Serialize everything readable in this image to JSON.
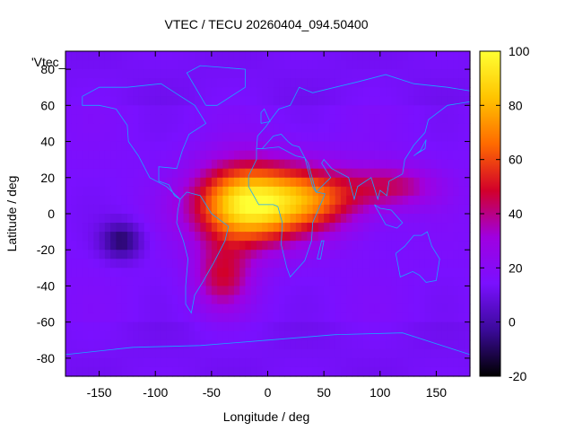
{
  "chart_data": {
    "type": "heatmap",
    "title": "VTEC / TECU 20260404_094.50400",
    "xlabel": "Longitude / deg",
    "ylabel": "Latitude / deg",
    "series_label": "'Vtec_",
    "xlim": [
      -180,
      180
    ],
    "ylim": [
      -90,
      90
    ],
    "xticks": [
      "-150",
      "-100",
      "-50",
      "0",
      "50",
      "100",
      "150"
    ],
    "xtick_values": [
      -150,
      -100,
      -50,
      0,
      50,
      100,
      150
    ],
    "yticks": [
      "-80",
      "-60",
      "-40",
      "-20",
      "0",
      "20",
      "40",
      "60",
      "80"
    ],
    "ytick_values": [
      -80,
      -60,
      -40,
      -20,
      0,
      20,
      40,
      60,
      80
    ],
    "colorbar": {
      "range": [
        -20,
        100
      ],
      "ticks": [
        "-20",
        "0",
        "20",
        "40",
        "60",
        "80",
        "100"
      ],
      "tick_values": [
        -20,
        0,
        20,
        40,
        60,
        80,
        100
      ],
      "stops": [
        "#000000",
        "#3b0a9a",
        "#7a10ff",
        "#a000e0",
        "#d2002a",
        "#ff6a00",
        "#ffc400",
        "#ffff33"
      ]
    },
    "background_level_tecu": 15,
    "anomalies": [
      {
        "lon": -20,
        "lat": 5,
        "peak_tecu": 95,
        "lon_spread": 45,
        "lat_spread": 22
      },
      {
        "lon": 40,
        "lat": 8,
        "peak_tecu": 60,
        "lon_spread": 45,
        "lat_spread": 18
      },
      {
        "lon": 110,
        "lat": 15,
        "peak_tecu": 42,
        "lon_spread": 40,
        "lat_spread": 12
      },
      {
        "lon": -40,
        "lat": -35,
        "peak_tecu": 45,
        "lon_spread": 25,
        "lat_spread": 18
      },
      {
        "lon": -130,
        "lat": -15,
        "peak_tecu": -8,
        "lon_spread": 18,
        "lat_spread": 10
      }
    ]
  }
}
